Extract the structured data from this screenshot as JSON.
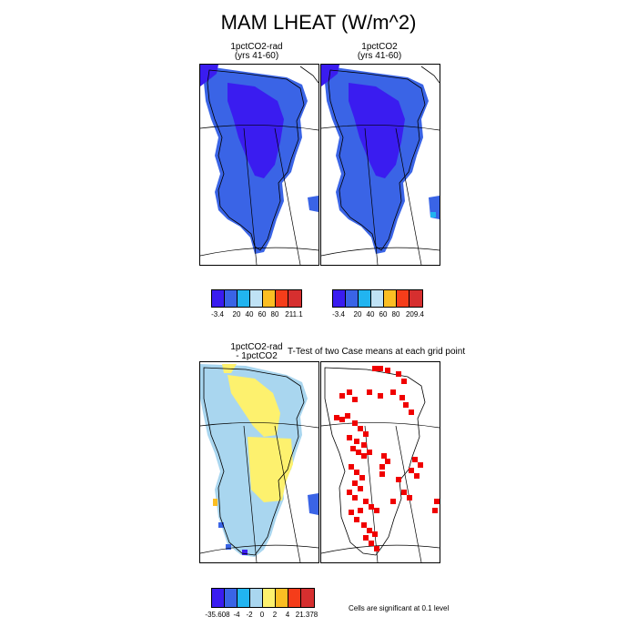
{
  "title": "MAM LHEAT (W/m^2)",
  "panels": {
    "p1": {
      "line1": "1pctCO2-rad",
      "line2": "(yrs 41-60)"
    },
    "p2": {
      "line1": "1pctCO2",
      "line2": "(yrs 41-60)"
    },
    "p3": {
      "line1": "1pctCO2-rad",
      "line2": "- 1pctCO2"
    },
    "p4": {
      "title": "T-Test of two Case means at each grid point"
    }
  },
  "colorbars": {
    "cb1": {
      "labels": [
        "-3.4",
        "20",
        "40",
        "60",
        "80",
        "211.1"
      ],
      "colors": [
        "#3a1cf0",
        "#3a64e6",
        "#21b4f0",
        "#bfe2f5",
        "#fbbe23",
        "#f53d1a",
        "#d62f2f"
      ]
    },
    "cb2": {
      "labels": [
        "-3.4",
        "20",
        "40",
        "60",
        "80",
        "209.4"
      ],
      "colors": [
        "#3a1cf0",
        "#3a64e6",
        "#21b4f0",
        "#bfe2f5",
        "#fbbe23",
        "#f53d1a",
        "#d62f2f"
      ]
    },
    "cb3": {
      "labels": [
        "-35.608",
        "-4",
        "-2",
        "0",
        "2",
        "4",
        "21.378"
      ],
      "colors": [
        "#3a1cf0",
        "#3a64e6",
        "#21b4f0",
        "#a9d6ef",
        "#fdf16e",
        "#fbbe23",
        "#f53d1a",
        "#d62f2f"
      ]
    }
  },
  "significance_note": "Cells are significant at 0.1 level",
  "colors": {
    "land_dark_blue": "#3a1cf0",
    "land_blue": "#3a64e6",
    "diff_light_blue": "#a9d6ef",
    "diff_yellow": "#fdf16e",
    "significant_red": "#f00000"
  }
}
